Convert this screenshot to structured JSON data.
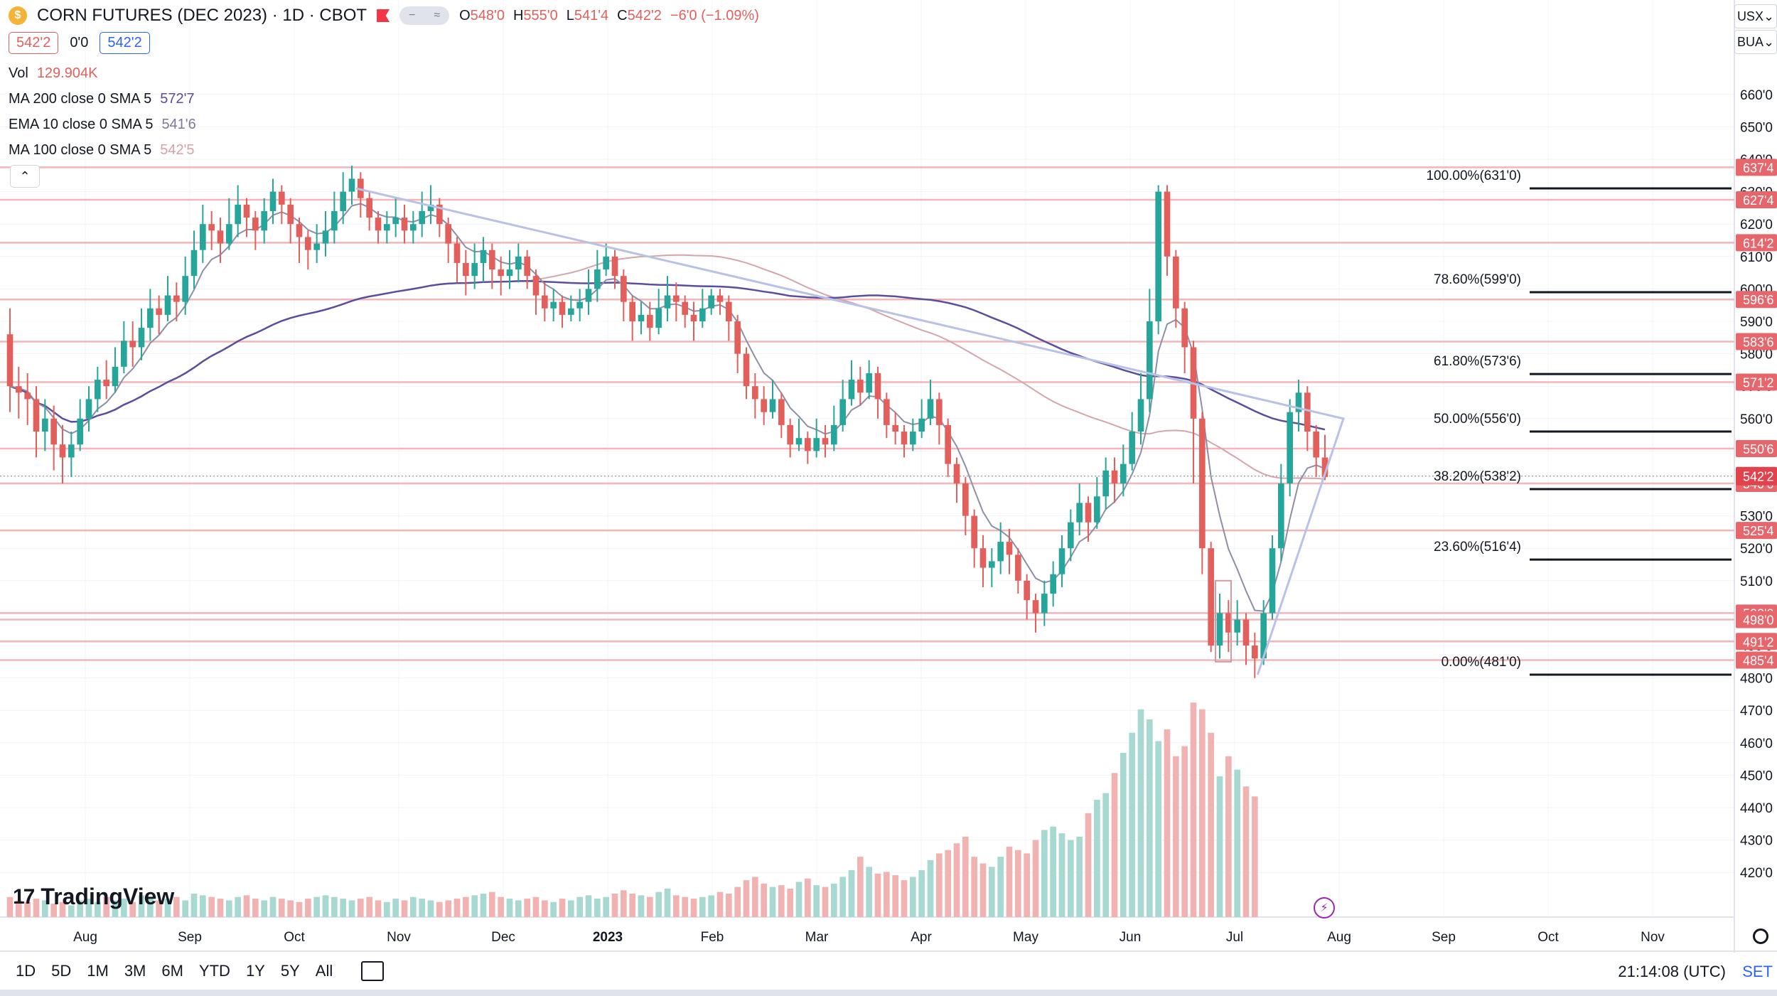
{
  "header": {
    "symbol_title": "CORN FUTURES (DEC 2023) · 1D · CBOT",
    "ohlc": [
      {
        "k": "O",
        "v": "548'0"
      },
      {
        "k": "H",
        "v": "555'0"
      },
      {
        "k": "L",
        "v": "541'4"
      },
      {
        "k": "C",
        "v": "542'2"
      },
      {
        "k": "",
        "v": "−6'0 (−1.09%)"
      }
    ],
    "bid": "542'2",
    "spread": "0'0",
    "ask": "542'2"
  },
  "indicators": [
    {
      "label": "Vol",
      "value": "129.904K",
      "color": "#e25f5b"
    },
    {
      "label": "MA 200 close 0 SMA 5",
      "value": "572'7",
      "color": "#5b4e9e"
    },
    {
      "label": "EMA 10 close 0 SMA 5",
      "value": "541'6",
      "color": "#7a7a9a"
    },
    {
      "label": "MA 100 close 0 SMA 5",
      "value": "542'5",
      "color": "#d9a0a4"
    }
  ],
  "scale_controls": {
    "currency": "USX",
    "unit": "BUA"
  },
  "brand": {
    "name": "TradingView"
  },
  "timeframes": [
    "1D",
    "5D",
    "1M",
    "3M",
    "6M",
    "YTD",
    "1Y",
    "5Y",
    "All"
  ],
  "clock": "21:14:08 (UTC)",
  "settings_label": "SET",
  "colors": {
    "up": "#26a69a",
    "down": "#e25f5b",
    "hline": "#f3b5b8",
    "ma200": "#5b4e9e",
    "ma100": "#d4a6aa",
    "ema10": "#8c8fa8",
    "triangle": "#b8c1e6"
  },
  "chart_data": {
    "type": "candlestick",
    "symbol": "CORN FUTURES (DEC 2023)",
    "interval": "1D",
    "price_unit": "cents (eighths notation)",
    "price_axis": {
      "ticks": [
        660,
        650,
        640,
        630,
        620,
        610,
        600,
        590,
        580,
        570,
        560,
        550,
        540,
        530,
        520,
        510,
        500,
        490,
        480,
        470,
        460,
        450,
        440,
        430,
        420
      ],
      "labels": [
        "660'0",
        "650'0",
        "640'0",
        "630'0",
        "620'0",
        "610'0",
        "600'0",
        "590'0",
        "580'0",
        "570'0",
        "560'0",
        "550'0",
        "540'0",
        "530'0",
        "520'0",
        "510'0",
        "500'0",
        "490'0",
        "480'0",
        "470'0",
        "460'0",
        "450'0",
        "440'0",
        "430'0",
        "420'0"
      ],
      "range": [
        415,
        665
      ]
    },
    "time_axis": {
      "labels": [
        "Aug",
        "Sep",
        "Oct",
        "Nov",
        "Dec",
        "2023",
        "Feb",
        "Mar",
        "Apr",
        "May",
        "Jun",
        "Jul",
        "Aug",
        "Sep",
        "Oct",
        "Nov"
      ]
    },
    "horizontal_levels": [
      {
        "price": 637.5,
        "label": "637'4"
      },
      {
        "price": 627.5,
        "label": "627'4"
      },
      {
        "price": 614.25,
        "label": "614'2"
      },
      {
        "price": 596.75,
        "label": "596'6"
      },
      {
        "price": 583.75,
        "label": "583'6"
      },
      {
        "price": 571.25,
        "label": "571'2"
      },
      {
        "price": 550.75,
        "label": "550'6"
      },
      {
        "price": 540.0,
        "label": "540'0"
      },
      {
        "price": 525.5,
        "label": "525'4"
      },
      {
        "price": 500.0,
        "label": "500'0"
      },
      {
        "price": 498.0,
        "label": "498'0"
      },
      {
        "price": 491.25,
        "label": "491'2"
      },
      {
        "price": 485.5,
        "label": "485'4"
      }
    ],
    "last_price": {
      "price": 542.25,
      "label": "542'2"
    },
    "fibonacci": {
      "high": 631,
      "low": 481,
      "levels": [
        {
          "label": "100.00%(631'0)",
          "price": 631.0
        },
        {
          "label": "78.60%(599'0)",
          "price": 599.0
        },
        {
          "label": "61.80%(573'6)",
          "price": 573.75
        },
        {
          "label": "50.00%(556'0)",
          "price": 556.0
        },
        {
          "label": "38.20%(538'2)",
          "price": 538.25
        },
        {
          "label": "23.60%(516'4)",
          "price": 516.5
        },
        {
          "label": "0.00%(481'0)",
          "price": 481.0
        }
      ]
    },
    "candles": [
      [
        586,
        570,
        594,
        562
      ],
      [
        570,
        568,
        576,
        560
      ],
      [
        568,
        566,
        574,
        558
      ],
      [
        566,
        556,
        570,
        548
      ],
      [
        556,
        560,
        566,
        550
      ],
      [
        560,
        552,
        564,
        544
      ],
      [
        552,
        548,
        558,
        540
      ],
      [
        548,
        552,
        556,
        542
      ],
      [
        552,
        560,
        566,
        550
      ],
      [
        560,
        566,
        570,
        556
      ],
      [
        566,
        572,
        576,
        562
      ],
      [
        572,
        570,
        578,
        566
      ],
      [
        570,
        576,
        582,
        568
      ],
      [
        576,
        584,
        590,
        574
      ],
      [
        584,
        582,
        590,
        576
      ],
      [
        582,
        588,
        594,
        578
      ],
      [
        588,
        594,
        600,
        584
      ],
      [
        594,
        592,
        598,
        586
      ],
      [
        592,
        598,
        604,
        590
      ],
      [
        598,
        596,
        602,
        590
      ],
      [
        596,
        604,
        610,
        592
      ],
      [
        604,
        612,
        618,
        600
      ],
      [
        612,
        620,
        626,
        608
      ],
      [
        620,
        618,
        624,
        612
      ],
      [
        618,
        614,
        622,
        608
      ],
      [
        614,
        620,
        628,
        612
      ],
      [
        620,
        626,
        632,
        616
      ],
      [
        626,
        622,
        628,
        616
      ],
      [
        622,
        618,
        624,
        612
      ],
      [
        618,
        624,
        628,
        614
      ],
      [
        624,
        630,
        634,
        620
      ],
      [
        630,
        626,
        632,
        620
      ],
      [
        626,
        620,
        628,
        614
      ],
      [
        620,
        616,
        622,
        608
      ],
      [
        616,
        612,
        618,
        606
      ],
      [
        612,
        614,
        620,
        608
      ],
      [
        614,
        618,
        624,
        610
      ],
      [
        618,
        624,
        630,
        614
      ],
      [
        624,
        630,
        636,
        620
      ],
      [
        630,
        634,
        638,
        626
      ],
      [
        634,
        628,
        636,
        622
      ],
      [
        628,
        622,
        630,
        618
      ],
      [
        622,
        618,
        624,
        614
      ],
      [
        618,
        620,
        624,
        614
      ],
      [
        620,
        622,
        628,
        616
      ],
      [
        622,
        618,
        626,
        614
      ],
      [
        618,
        620,
        624,
        614
      ],
      [
        620,
        624,
        630,
        616
      ],
      [
        624,
        626,
        632,
        620
      ],
      [
        626,
        620,
        628,
        616
      ],
      [
        620,
        614,
        622,
        608
      ],
      [
        614,
        608,
        616,
        602
      ],
      [
        608,
        604,
        612,
        598
      ],
      [
        604,
        608,
        614,
        600
      ],
      [
        608,
        612,
        616,
        602
      ],
      [
        612,
        606,
        614,
        600
      ],
      [
        606,
        604,
        610,
        598
      ],
      [
        604,
        606,
        612,
        600
      ],
      [
        606,
        610,
        614,
        602
      ],
      [
        610,
        604,
        612,
        600
      ],
      [
        604,
        598,
        606,
        592
      ],
      [
        598,
        594,
        602,
        590
      ],
      [
        594,
        596,
        600,
        590
      ],
      [
        596,
        592,
        598,
        588
      ],
      [
        592,
        594,
        598,
        590
      ],
      [
        594,
        596,
        600,
        590
      ],
      [
        596,
        600,
        606,
        592
      ],
      [
        600,
        606,
        612,
        596
      ],
      [
        606,
        610,
        614,
        604
      ],
      [
        610,
        604,
        612,
        600
      ],
      [
        604,
        596,
        606,
        590
      ],
      [
        596,
        590,
        598,
        584
      ],
      [
        590,
        592,
        596,
        586
      ],
      [
        592,
        588,
        596,
        584
      ],
      [
        588,
        594,
        600,
        586
      ],
      [
        594,
        598,
        604,
        590
      ],
      [
        598,
        596,
        602,
        590
      ],
      [
        596,
        592,
        598,
        588
      ],
      [
        592,
        590,
        596,
        584
      ],
      [
        590,
        594,
        600,
        588
      ],
      [
        594,
        598,
        600,
        592
      ],
      [
        598,
        596,
        600,
        592
      ],
      [
        596,
        590,
        598,
        584
      ],
      [
        590,
        580,
        592,
        574
      ],
      [
        580,
        570,
        582,
        566
      ],
      [
        570,
        566,
        574,
        560
      ],
      [
        566,
        562,
        570,
        558
      ],
      [
        562,
        566,
        572,
        560
      ],
      [
        566,
        558,
        568,
        554
      ],
      [
        558,
        552,
        560,
        548
      ],
      [
        552,
        554,
        560,
        550
      ],
      [
        554,
        550,
        556,
        546
      ],
      [
        550,
        554,
        560,
        548
      ],
      [
        554,
        552,
        558,
        548
      ],
      [
        552,
        558,
        564,
        550
      ],
      [
        558,
        566,
        572,
        556
      ],
      [
        566,
        572,
        578,
        564
      ],
      [
        572,
        568,
        576,
        564
      ],
      [
        568,
        574,
        578,
        566
      ],
      [
        574,
        566,
        576,
        560
      ],
      [
        566,
        558,
        568,
        554
      ],
      [
        558,
        556,
        562,
        552
      ],
      [
        556,
        552,
        558,
        548
      ],
      [
        552,
        556,
        560,
        550
      ],
      [
        556,
        560,
        566,
        554
      ],
      [
        560,
        566,
        572,
        558
      ],
      [
        566,
        558,
        568,
        552
      ],
      [
        558,
        546,
        560,
        542
      ],
      [
        546,
        540,
        548,
        534
      ],
      [
        540,
        530,
        542,
        524
      ],
      [
        530,
        520,
        532,
        514
      ],
      [
        520,
        514,
        524,
        508
      ],
      [
        514,
        516,
        520,
        508
      ],
      [
        516,
        522,
        528,
        512
      ],
      [
        522,
        518,
        526,
        512
      ],
      [
        518,
        510,
        520,
        506
      ],
      [
        510,
        504,
        512,
        498
      ],
      [
        504,
        500,
        506,
        494
      ],
      [
        500,
        506,
        510,
        496
      ],
      [
        506,
        512,
        516,
        502
      ],
      [
        512,
        520,
        524,
        508
      ],
      [
        520,
        528,
        532,
        516
      ],
      [
        528,
        534,
        540,
        524
      ],
      [
        534,
        528,
        536,
        522
      ],
      [
        528,
        536,
        542,
        526
      ],
      [
        536,
        544,
        548,
        532
      ],
      [
        544,
        540,
        548,
        534
      ],
      [
        540,
        546,
        552,
        536
      ],
      [
        546,
        556,
        562,
        544
      ],
      [
        556,
        566,
        574,
        552
      ],
      [
        566,
        590,
        600,
        562
      ],
      [
        590,
        630,
        632,
        586
      ],
      [
        630,
        610,
        632,
        604
      ],
      [
        610,
        594,
        612,
        588
      ],
      [
        594,
        582,
        596,
        574
      ],
      [
        582,
        560,
        584,
        540
      ],
      [
        560,
        520,
        562,
        512
      ],
      [
        520,
        490,
        522,
        488
      ],
      [
        490,
        500,
        506,
        486
      ],
      [
        500,
        494,
        504,
        488
      ],
      [
        494,
        498,
        504,
        490
      ],
      [
        498,
        490,
        500,
        484
      ],
      [
        490,
        486,
        494,
        480
      ],
      [
        486,
        500,
        504,
        484
      ],
      [
        500,
        520,
        524,
        498
      ],
      [
        520,
        540,
        546,
        516
      ],
      [
        540,
        562,
        566,
        536
      ],
      [
        562,
        568,
        572,
        556
      ],
      [
        568,
        556,
        570,
        550
      ],
      [
        556,
        548,
        558,
        542
      ],
      [
        548,
        542,
        555,
        541
      ]
    ],
    "volume_scale": {
      "range": [
        0,
        140
      ]
    },
    "volume": [
      12,
      10,
      9,
      11,
      10,
      8,
      9,
      7,
      10,
      11,
      9,
      12,
      10,
      11,
      9,
      13,
      12,
      10,
      11,
      12,
      10,
      14,
      13,
      12,
      11,
      10,
      12,
      13,
      11,
      10,
      12,
      11,
      10,
      9,
      11,
      12,
      13,
      12,
      11,
      10,
      11,
      12,
      10,
      9,
      11,
      10,
      12,
      11,
      10,
      9,
      10,
      11,
      12,
      13,
      14,
      15,
      12,
      11,
      10,
      11,
      12,
      10,
      9,
      11,
      10,
      12,
      13,
      11,
      12,
      14,
      16,
      14,
      13,
      12,
      15,
      17,
      13,
      12,
      11,
      12,
      13,
      15,
      14,
      18,
      22,
      24,
      20,
      18,
      19,
      17,
      21,
      23,
      19,
      18,
      20,
      24,
      28,
      36,
      30,
      26,
      27,
      25,
      22,
      24,
      28,
      34,
      38,
      40,
      44,
      48,
      36,
      32,
      30,
      36,
      42,
      40,
      38,
      46,
      52,
      54,
      50,
      46,
      48,
      62,
      70,
      74,
      86,
      98,
      110,
      124,
      118,
      105,
      112,
      96,
      102,
      128,
      124,
      110,
      84,
      96,
      88,
      78,
      72
    ]
  }
}
